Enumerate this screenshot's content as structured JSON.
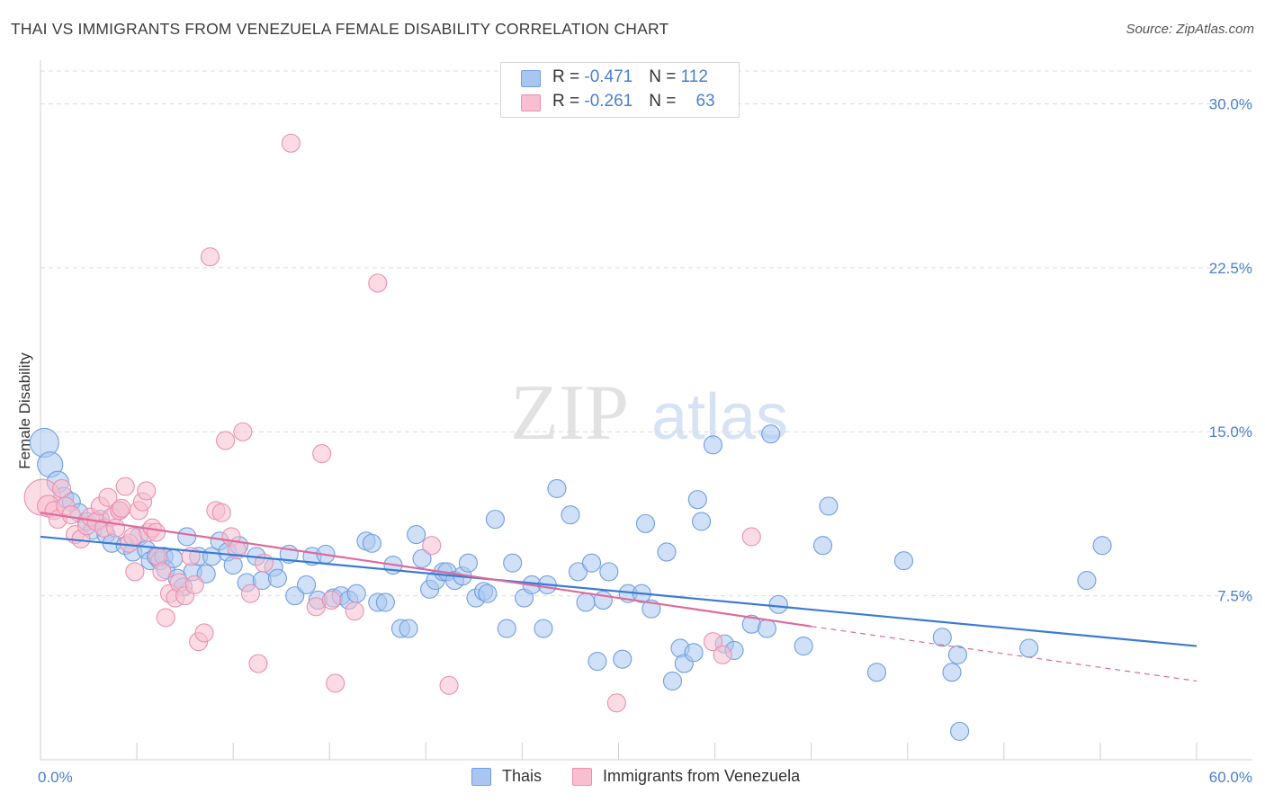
{
  "title": "THAI VS IMMIGRANTS FROM VENEZUELA FEMALE DISABILITY CORRELATION CHART",
  "source": "Source: ZipAtlas.com",
  "watermark": {
    "zip": "ZIP",
    "atlas": "atlas"
  },
  "legend_top": [
    {
      "r_label": "R = ",
      "r_value": "-0.471",
      "n_label": "N = ",
      "n_value": "112"
    },
    {
      "r_label": "R = ",
      "r_value": "-0.261",
      "n_label": "N = ",
      "n_value": "63"
    }
  ],
  "legend_bottom": [
    {
      "label": "Thais"
    },
    {
      "label": "Immigrants from Venezuela"
    }
  ],
  "colors": {
    "thais_fill": "#a9c6f0",
    "thais_stroke": "#6f9ee0",
    "thais_line": "#3a7bd5",
    "ven_fill": "#f7bfd0",
    "ven_stroke": "#eb8fae",
    "ven_line": "#e0689a",
    "grid": "#dcdcdc",
    "tick_text": "#4a7fd0"
  },
  "chart_data": {
    "type": "scatter",
    "title": "THAI VS IMMIGRANTS FROM VENEZUELA FEMALE DISABILITY CORRELATION CHART",
    "xlabel": "",
    "ylabel": "Female Disability",
    "xlim": [
      0,
      60
    ],
    "ylim": [
      0,
      31.5
    ],
    "x_tick_labels": [
      {
        "value": 0,
        "label": "0.0%"
      },
      {
        "value": 60,
        "label": "60.0%"
      }
    ],
    "y_tick_labels": [
      {
        "value": 7.5,
        "label": "7.5%"
      },
      {
        "value": 15,
        "label": "15.0%"
      },
      {
        "value": 22.5,
        "label": "22.5%"
      },
      {
        "value": 30,
        "label": "30.0%"
      }
    ],
    "grid": "horizontal dashed",
    "series": [
      {
        "name": "Thais",
        "r": -0.471,
        "n": 112,
        "trend": {
          "x": [
            0,
            60
          ],
          "y": [
            10.2,
            5.2
          ]
        },
        "points": [
          {
            "x": 0.2,
            "y": 14.5,
            "s": 16
          },
          {
            "x": 0.5,
            "y": 13.5,
            "s": 14
          },
          {
            "x": 0.9,
            "y": 12.7,
            "s": 12
          },
          {
            "x": 1.2,
            "y": 12.0,
            "s": 11
          },
          {
            "x": 1.6,
            "y": 11.8,
            "s": 10
          },
          {
            "x": 2.0,
            "y": 11.3,
            "s": 10
          },
          {
            "x": 2.4,
            "y": 10.9,
            "s": 10
          },
          {
            "x": 2.7,
            "y": 10.5,
            "s": 10
          },
          {
            "x": 3.1,
            "y": 11.0,
            "s": 10
          },
          {
            "x": 3.4,
            "y": 10.3,
            "s": 10
          },
          {
            "x": 3.7,
            "y": 9.9,
            "s": 10
          },
          {
            "x": 4.1,
            "y": 11.4,
            "s": 10
          },
          {
            "x": 4.4,
            "y": 9.8,
            "s": 10
          },
          {
            "x": 4.8,
            "y": 9.5,
            "s": 10
          },
          {
            "x": 5.1,
            "y": 10.2,
            "s": 10
          },
          {
            "x": 5.5,
            "y": 9.6,
            "s": 10
          },
          {
            "x": 5.7,
            "y": 9.1,
            "s": 10
          },
          {
            "x": 6.0,
            "y": 9.3,
            "s": 10
          },
          {
            "x": 6.2,
            "y": 9.1,
            "s": 10
          },
          {
            "x": 6.4,
            "y": 9.3,
            "s": 10
          },
          {
            "x": 6.5,
            "y": 8.7,
            "s": 10
          },
          {
            "x": 6.9,
            "y": 9.2,
            "s": 10
          },
          {
            "x": 7.1,
            "y": 8.3,
            "s": 10
          },
          {
            "x": 7.4,
            "y": 7.9,
            "s": 10
          },
          {
            "x": 7.6,
            "y": 10.2,
            "s": 10
          },
          {
            "x": 7.9,
            "y": 8.6,
            "s": 10
          },
          {
            "x": 8.2,
            "y": 9.3,
            "s": 10
          },
          {
            "x": 8.6,
            "y": 8.5,
            "s": 10
          },
          {
            "x": 8.9,
            "y": 9.3,
            "s": 10
          },
          {
            "x": 9.3,
            "y": 10.0,
            "s": 10
          },
          {
            "x": 9.7,
            "y": 9.5,
            "s": 10
          },
          {
            "x": 10.0,
            "y": 8.9,
            "s": 10
          },
          {
            "x": 10.3,
            "y": 9.8,
            "s": 10
          },
          {
            "x": 10.7,
            "y": 8.1,
            "s": 10
          },
          {
            "x": 11.2,
            "y": 9.3,
            "s": 10
          },
          {
            "x": 11.5,
            "y": 8.2,
            "s": 10
          },
          {
            "x": 12.1,
            "y": 8.8,
            "s": 10
          },
          {
            "x": 12.3,
            "y": 8.3,
            "s": 10
          },
          {
            "x": 12.9,
            "y": 9.4,
            "s": 10
          },
          {
            "x": 13.2,
            "y": 7.5,
            "s": 10
          },
          {
            "x": 13.8,
            "y": 8.0,
            "s": 10
          },
          {
            "x": 14.1,
            "y": 9.3,
            "s": 10
          },
          {
            "x": 14.4,
            "y": 7.3,
            "s": 10
          },
          {
            "x": 14.8,
            "y": 9.4,
            "s": 10
          },
          {
            "x": 15.2,
            "y": 7.4,
            "s": 10
          },
          {
            "x": 15.6,
            "y": 7.5,
            "s": 10
          },
          {
            "x": 16.0,
            "y": 7.3,
            "s": 10
          },
          {
            "x": 16.4,
            "y": 7.6,
            "s": 10
          },
          {
            "x": 16.9,
            "y": 10.0,
            "s": 10
          },
          {
            "x": 17.2,
            "y": 9.9,
            "s": 10
          },
          {
            "x": 17.5,
            "y": 7.2,
            "s": 10
          },
          {
            "x": 17.9,
            "y": 7.2,
            "s": 10
          },
          {
            "x": 18.3,
            "y": 8.9,
            "s": 10
          },
          {
            "x": 18.7,
            "y": 6.0,
            "s": 10
          },
          {
            "x": 19.1,
            "y": 6.0,
            "s": 10
          },
          {
            "x": 19.5,
            "y": 10.3,
            "s": 10
          },
          {
            "x": 19.8,
            "y": 9.2,
            "s": 10
          },
          {
            "x": 20.2,
            "y": 7.8,
            "s": 10
          },
          {
            "x": 20.5,
            "y": 8.2,
            "s": 10
          },
          {
            "x": 20.9,
            "y": 8.6,
            "s": 10
          },
          {
            "x": 21.1,
            "y": 8.6,
            "s": 10
          },
          {
            "x": 21.5,
            "y": 8.2,
            "s": 10
          },
          {
            "x": 21.9,
            "y": 8.4,
            "s": 10
          },
          {
            "x": 22.2,
            "y": 9.0,
            "s": 10
          },
          {
            "x": 22.6,
            "y": 7.4,
            "s": 10
          },
          {
            "x": 23.0,
            "y": 7.7,
            "s": 10
          },
          {
            "x": 23.2,
            "y": 7.6,
            "s": 10
          },
          {
            "x": 23.6,
            "y": 11.0,
            "s": 10
          },
          {
            "x": 24.2,
            "y": 6.0,
            "s": 10
          },
          {
            "x": 24.5,
            "y": 9.0,
            "s": 10
          },
          {
            "x": 25.1,
            "y": 7.4,
            "s": 10
          },
          {
            "x": 25.5,
            "y": 8.0,
            "s": 10
          },
          {
            "x": 26.1,
            "y": 6.0,
            "s": 10
          },
          {
            "x": 26.3,
            "y": 8.0,
            "s": 10
          },
          {
            "x": 26.8,
            "y": 12.4,
            "s": 10
          },
          {
            "x": 27.5,
            "y": 11.2,
            "s": 10
          },
          {
            "x": 27.9,
            "y": 8.6,
            "s": 10
          },
          {
            "x": 28.3,
            "y": 7.2,
            "s": 10
          },
          {
            "x": 28.6,
            "y": 9.0,
            "s": 10
          },
          {
            "x": 28.9,
            "y": 4.5,
            "s": 10
          },
          {
            "x": 29.2,
            "y": 7.3,
            "s": 10
          },
          {
            "x": 29.5,
            "y": 8.6,
            "s": 10
          },
          {
            "x": 30.2,
            "y": 4.6,
            "s": 10
          },
          {
            "x": 30.5,
            "y": 7.6,
            "s": 10
          },
          {
            "x": 31.2,
            "y": 7.6,
            "s": 10
          },
          {
            "x": 31.4,
            "y": 10.8,
            "s": 10
          },
          {
            "x": 31.7,
            "y": 6.9,
            "s": 10
          },
          {
            "x": 32.5,
            "y": 9.5,
            "s": 10
          },
          {
            "x": 32.8,
            "y": 3.6,
            "s": 10
          },
          {
            "x": 33.2,
            "y": 5.1,
            "s": 10
          },
          {
            "x": 33.4,
            "y": 4.4,
            "s": 10
          },
          {
            "x": 33.9,
            "y": 4.9,
            "s": 10
          },
          {
            "x": 34.1,
            "y": 11.9,
            "s": 10
          },
          {
            "x": 34.3,
            "y": 10.9,
            "s": 10
          },
          {
            "x": 34.9,
            "y": 14.4,
            "s": 10
          },
          {
            "x": 35.5,
            "y": 5.3,
            "s": 10
          },
          {
            "x": 36.0,
            "y": 5.0,
            "s": 10
          },
          {
            "x": 36.9,
            "y": 6.2,
            "s": 10
          },
          {
            "x": 37.7,
            "y": 6.0,
            "s": 10
          },
          {
            "x": 37.9,
            "y": 14.9,
            "s": 10
          },
          {
            "x": 38.3,
            "y": 7.1,
            "s": 10
          },
          {
            "x": 39.6,
            "y": 5.2,
            "s": 10
          },
          {
            "x": 40.6,
            "y": 9.8,
            "s": 10
          },
          {
            "x": 40.9,
            "y": 11.6,
            "s": 10
          },
          {
            "x": 43.4,
            "y": 4.0,
            "s": 10
          },
          {
            "x": 44.8,
            "y": 9.1,
            "s": 10
          },
          {
            "x": 46.8,
            "y": 5.6,
            "s": 10
          },
          {
            "x": 47.3,
            "y": 4.0,
            "s": 10
          },
          {
            "x": 47.6,
            "y": 4.8,
            "s": 10
          },
          {
            "x": 47.7,
            "y": 1.3,
            "s": 10
          },
          {
            "x": 51.3,
            "y": 5.1,
            "s": 10
          },
          {
            "x": 54.3,
            "y": 8.2,
            "s": 10
          },
          {
            "x": 55.1,
            "y": 9.8,
            "s": 10
          }
        ]
      },
      {
        "name": "Immigrants from Venezuela",
        "r": -0.261,
        "n": 63,
        "trend": {
          "x": [
            0,
            40
          ],
          "y": [
            11.3,
            6.1
          ]
        },
        "trend_dashed": {
          "x": [
            40,
            60
          ],
          "y": [
            6.1,
            3.6
          ]
        },
        "points": [
          {
            "x": 0.1,
            "y": 12.0,
            "s": 20
          },
          {
            "x": 0.4,
            "y": 11.6,
            "s": 12
          },
          {
            "x": 0.7,
            "y": 11.4,
            "s": 10
          },
          {
            "x": 0.9,
            "y": 11.0,
            "s": 10
          },
          {
            "x": 1.1,
            "y": 12.4,
            "s": 10
          },
          {
            "x": 1.3,
            "y": 11.6,
            "s": 10
          },
          {
            "x": 1.6,
            "y": 11.2,
            "s": 10
          },
          {
            "x": 1.8,
            "y": 10.3,
            "s": 10
          },
          {
            "x": 2.1,
            "y": 10.1,
            "s": 10
          },
          {
            "x": 2.4,
            "y": 10.7,
            "s": 10
          },
          {
            "x": 2.6,
            "y": 11.1,
            "s": 10
          },
          {
            "x": 2.9,
            "y": 10.9,
            "s": 10
          },
          {
            "x": 3.1,
            "y": 11.6,
            "s": 10
          },
          {
            "x": 3.3,
            "y": 10.6,
            "s": 10
          },
          {
            "x": 3.5,
            "y": 12.0,
            "s": 10
          },
          {
            "x": 3.7,
            "y": 11.1,
            "s": 10
          },
          {
            "x": 3.9,
            "y": 10.6,
            "s": 10
          },
          {
            "x": 4.1,
            "y": 11.4,
            "s": 10
          },
          {
            "x": 4.2,
            "y": 11.5,
            "s": 10
          },
          {
            "x": 4.4,
            "y": 12.5,
            "s": 10
          },
          {
            "x": 4.6,
            "y": 9.9,
            "s": 10
          },
          {
            "x": 4.8,
            "y": 10.2,
            "s": 10
          },
          {
            "x": 4.9,
            "y": 8.6,
            "s": 10
          },
          {
            "x": 5.1,
            "y": 11.4,
            "s": 10
          },
          {
            "x": 5.3,
            "y": 11.8,
            "s": 10
          },
          {
            "x": 5.5,
            "y": 12.3,
            "s": 10
          },
          {
            "x": 5.6,
            "y": 10.4,
            "s": 10
          },
          {
            "x": 5.8,
            "y": 10.6,
            "s": 10
          },
          {
            "x": 6.0,
            "y": 10.4,
            "s": 10
          },
          {
            "x": 6.1,
            "y": 9.3,
            "s": 10
          },
          {
            "x": 6.3,
            "y": 8.6,
            "s": 10
          },
          {
            "x": 6.5,
            "y": 6.5,
            "s": 10
          },
          {
            "x": 6.7,
            "y": 7.6,
            "s": 10
          },
          {
            "x": 7.0,
            "y": 7.4,
            "s": 10
          },
          {
            "x": 7.2,
            "y": 8.1,
            "s": 10
          },
          {
            "x": 7.5,
            "y": 7.5,
            "s": 10
          },
          {
            "x": 7.8,
            "y": 9.3,
            "s": 10
          },
          {
            "x": 8.0,
            "y": 8.0,
            "s": 10
          },
          {
            "x": 8.2,
            "y": 5.4,
            "s": 10
          },
          {
            "x": 8.5,
            "y": 5.8,
            "s": 10
          },
          {
            "x": 8.8,
            "y": 23.0,
            "s": 10
          },
          {
            "x": 9.1,
            "y": 11.4,
            "s": 10
          },
          {
            "x": 9.4,
            "y": 11.3,
            "s": 10
          },
          {
            "x": 9.6,
            "y": 14.6,
            "s": 10
          },
          {
            "x": 9.9,
            "y": 10.2,
            "s": 10
          },
          {
            "x": 10.2,
            "y": 9.6,
            "s": 10
          },
          {
            "x": 10.5,
            "y": 15.0,
            "s": 10
          },
          {
            "x": 10.9,
            "y": 7.6,
            "s": 10
          },
          {
            "x": 11.3,
            "y": 4.4,
            "s": 10
          },
          {
            "x": 11.6,
            "y": 9.0,
            "s": 10
          },
          {
            "x": 13.0,
            "y": 28.2,
            "s": 10
          },
          {
            "x": 14.3,
            "y": 7.0,
            "s": 10
          },
          {
            "x": 14.6,
            "y": 14.0,
            "s": 10
          },
          {
            "x": 15.1,
            "y": 7.3,
            "s": 10
          },
          {
            "x": 15.3,
            "y": 3.5,
            "s": 10
          },
          {
            "x": 16.3,
            "y": 6.8,
            "s": 10
          },
          {
            "x": 17.5,
            "y": 21.8,
            "s": 10
          },
          {
            "x": 20.3,
            "y": 9.8,
            "s": 10
          },
          {
            "x": 21.2,
            "y": 3.4,
            "s": 10
          },
          {
            "x": 29.9,
            "y": 2.6,
            "s": 10
          },
          {
            "x": 34.9,
            "y": 5.4,
            "s": 10
          },
          {
            "x": 35.4,
            "y": 4.8,
            "s": 10
          },
          {
            "x": 36.9,
            "y": 10.2,
            "s": 10
          }
        ]
      }
    ]
  }
}
